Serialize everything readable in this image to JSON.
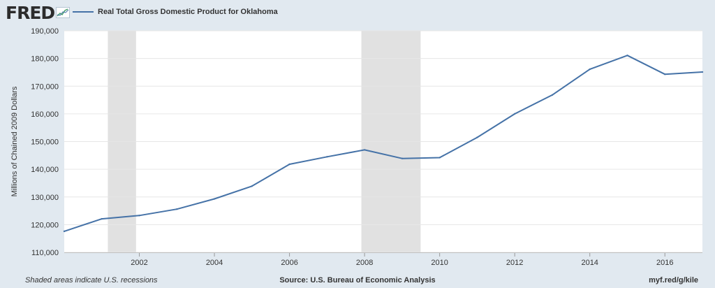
{
  "header": {
    "logo_text": "FRED",
    "legend_label": "Real Total Gross Domestic Product for Oklahoma"
  },
  "footer": {
    "note": "Shaded areas indicate U.S. recessions",
    "source": "Source: U.S. Bureau of Economic Analysis",
    "link": "myf.red/g/kile"
  },
  "colors": {
    "background": "#e1e9f0",
    "plot_area": "#ffffff",
    "series_line": "#4572a7",
    "recession_shade": "#e1e1e1",
    "gridline": "#e6e6e6"
  },
  "chart_data": {
    "type": "line",
    "title": "",
    "xlabel": "",
    "ylabel": "Millions of Chained 2009 Dollars",
    "xlim": [
      2000,
      2017
    ],
    "ylim": [
      110000,
      190000
    ],
    "grid": true,
    "legend_position": "top-left",
    "x_ticks": [
      "2002",
      "2004",
      "2006",
      "2008",
      "2010",
      "2012",
      "2014",
      "2016"
    ],
    "y_ticks": [
      "110,000",
      "120,000",
      "130,000",
      "140,000",
      "150,000",
      "160,000",
      "170,000",
      "180,000",
      "190,000"
    ],
    "recessions": [
      {
        "start": "2001-03-01",
        "end": "2001-11-30"
      },
      {
        "start": "2007-12-01",
        "end": "2009-06-30"
      }
    ],
    "series": [
      {
        "name": "Real Total Gross Domestic Product for Oklahoma",
        "x": [
          2000,
          2001,
          2002,
          2003,
          2004,
          2005,
          2006,
          2007,
          2008,
          2009,
          2010,
          2011,
          2012,
          2013,
          2014,
          2015,
          2016,
          2017
        ],
        "values": [
          117600,
          122100,
          123300,
          125600,
          129300,
          133900,
          141800,
          144500,
          147000,
          143900,
          144200,
          151500,
          160000,
          166800,
          176100,
          181100,
          174300,
          175100
        ]
      }
    ]
  }
}
